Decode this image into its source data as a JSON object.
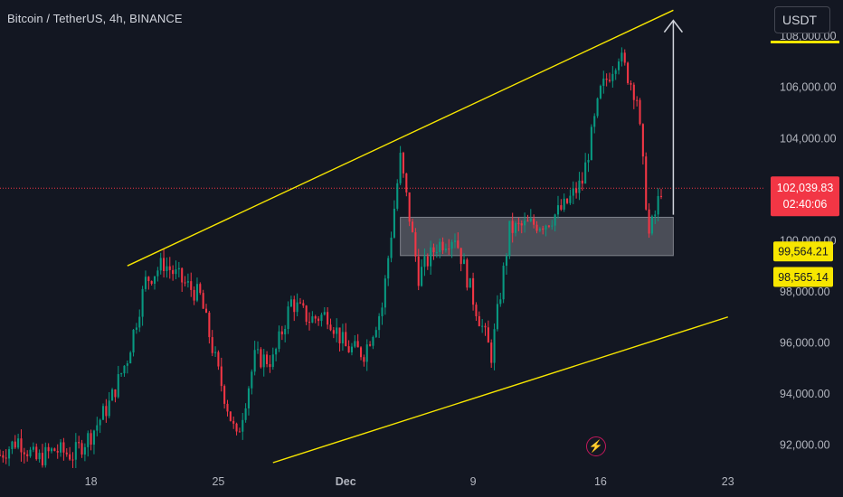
{
  "header": {
    "title": "Bitcoin / TetherUS, 4h, BINANCE",
    "currency_button": "USDT"
  },
  "price_scale": {
    "ticks": [
      "108,000.00",
      "106,000.00",
      "104,000.00",
      "102,000.00",
      "100,000.00",
      "98,000.00",
      "96,000.00",
      "94,000.00",
      "92,000.00"
    ]
  },
  "time_axis": {
    "labels": [
      {
        "text": "18",
        "bold": false
      },
      {
        "text": "25",
        "bold": false
      },
      {
        "text": "Dec",
        "bold": true
      },
      {
        "text": "9",
        "bold": false
      },
      {
        "text": "16",
        "bold": false
      },
      {
        "text": "23",
        "bold": false
      }
    ]
  },
  "badges": {
    "last_price": "102,039.83",
    "countdown": "02:40:06",
    "level_upper": "99,564.21",
    "level_lower": "98,565.14"
  },
  "colors": {
    "background": "#131722",
    "up": "#089981",
    "down": "#f23645",
    "channel": "#f7e600",
    "zone": "#9598a1",
    "arrow": "#d1d4dc",
    "price_line": "#f23645"
  },
  "chart_data": {
    "type": "candlestick",
    "symbol": "BTCUSDT",
    "interval": "4h",
    "ylim": [
      91300,
      109400
    ],
    "x_range": [
      "2024-11-13",
      "2024-12-25"
    ],
    "last_price": 102039.83,
    "channel": {
      "upper": [
        {
          "date": "2024-11-20",
          "price": 99000
        },
        {
          "date": "2024-12-20",
          "price": 109000
        }
      ],
      "lower": [
        {
          "date": "2024-11-28",
          "price": 91300
        },
        {
          "date": "2024-12-23",
          "price": 97000
        }
      ]
    },
    "zone": {
      "start": "2024-12-05",
      "end": "2024-12-20",
      "high": 100900,
      "low": 99400
    },
    "target_arrow": {
      "date": "2024-12-20",
      "from": 101000,
      "to": 108600
    },
    "path": [
      [
        "2024-11-13",
        91600
      ],
      [
        "2024-11-14",
        92200
      ],
      [
        "2024-11-15",
        91400
      ],
      [
        "2024-11-16",
        91800
      ],
      [
        "2024-11-17",
        91600
      ],
      [
        "2024-11-18",
        92400
      ],
      [
        "2024-11-19",
        93600
      ],
      [
        "2024-11-20",
        95400
      ],
      [
        "2024-11-21",
        98400
      ],
      [
        "2024-11-22",
        99100
      ],
      [
        "2024-11-23",
        98400
      ],
      [
        "2024-11-24",
        97800
      ],
      [
        "2024-11-25",
        94800
      ],
      [
        "2024-11-26",
        92200
      ],
      [
        "2024-11-27",
        95400
      ],
      [
        "2024-11-28",
        95300
      ],
      [
        "2024-11-29",
        97600
      ],
      [
        "2024-11-30",
        96900
      ],
      [
        "2024-12-01",
        97100
      ],
      [
        "2024-12-02",
        95800
      ],
      [
        "2024-12-03",
        95600
      ],
      [
        "2024-12-04",
        97400
      ],
      [
        "2024-12-05",
        103200
      ],
      [
        "2024-12-06",
        98600
      ],
      [
        "2024-12-07",
        99800
      ],
      [
        "2024-12-08",
        100200
      ],
      [
        "2024-12-09",
        97700
      ],
      [
        "2024-12-10",
        95500
      ],
      [
        "2024-12-11",
        100400
      ],
      [
        "2024-12-12",
        100600
      ],
      [
        "2024-12-13",
        100700
      ],
      [
        "2024-12-14",
        101300
      ],
      [
        "2024-12-15",
        102300
      ],
      [
        "2024-12-16",
        105800
      ],
      [
        "2024-12-17",
        107300
      ],
      [
        "2024-12-18",
        105600
      ],
      [
        "2024-12-18T16:00",
        100200
      ],
      [
        "2024-12-19",
        101000
      ],
      [
        "2024-12-19T08:00",
        102040
      ]
    ]
  }
}
